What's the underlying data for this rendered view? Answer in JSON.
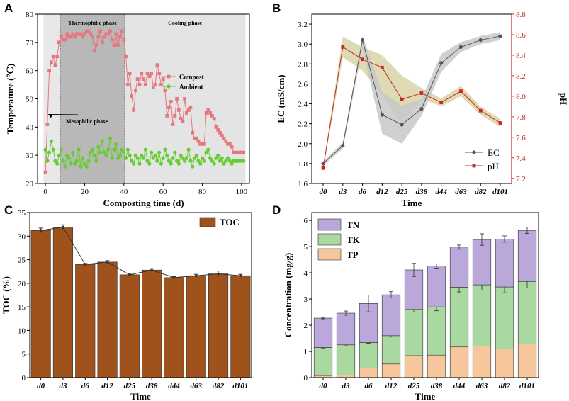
{
  "panels": {
    "a": "A",
    "b": "B",
    "c": "C",
    "d": "D"
  },
  "colors": {
    "compost": "#e8767d",
    "ambient": "#66cc33",
    "ec": "#555555",
    "ph": "#c62828",
    "toc": "#a0521d",
    "tn": "#b9a8d9",
    "tk": "#a9d8a0",
    "tp": "#f6c79c",
    "band_ec": "#c8c8c8",
    "band_ph": "#d8d3a6",
    "phase_meso": "#e8e8e8",
    "phase_thermo": "#b8b8b8",
    "phase_cool": "#e4e4e4"
  },
  "chart_data": [
    {
      "id": "A",
      "type": "line",
      "xlabel": "Composting time (d)",
      "ylabel": "Temperature (℃)",
      "xlim": [
        -4,
        104
      ],
      "ylim": [
        20,
        80
      ],
      "xticks": [
        0,
        20,
        40,
        60,
        80,
        100
      ],
      "yticks": [
        20,
        30,
        40,
        50,
        60,
        70,
        80
      ],
      "phases": [
        {
          "name": "Mesophilic phase",
          "start": -1,
          "end": 7.5
        },
        {
          "name": "Thermophilic phase",
          "start": 7.5,
          "end": 40.5
        },
        {
          "name": "Cooling phase",
          "start": 40.5,
          "end": 102
        }
      ],
      "annotation": "Mesophilic phase",
      "series": [
        {
          "name": "Compost",
          "x": [
            0,
            1,
            2,
            3,
            4,
            5,
            6,
            7,
            8,
            9,
            10,
            11,
            12,
            13,
            14,
            15,
            16,
            17,
            18,
            19,
            20,
            21,
            22,
            23,
            24,
            25,
            26,
            27,
            28,
            29,
            30,
            31,
            32,
            33,
            34,
            35,
            36,
            37,
            38,
            39,
            40,
            41,
            42,
            43,
            44,
            45,
            46,
            47,
            48,
            49,
            50,
            51,
            52,
            53,
            54,
            55,
            56,
            57,
            58,
            59,
            60,
            61,
            62,
            63,
            64,
            65,
            66,
            67,
            68,
            69,
            70,
            71,
            72,
            73,
            74,
            75,
            76,
            77,
            78,
            79,
            80,
            81,
            82,
            83,
            84,
            85,
            86,
            87,
            88,
            89,
            90,
            91,
            92,
            93,
            94,
            95,
            96,
            97,
            98,
            99,
            100,
            101
          ],
          "values": [
            24,
            41,
            60,
            63,
            65,
            62,
            65,
            70,
            72,
            71,
            71,
            73,
            72,
            72,
            73,
            72,
            73,
            73,
            73,
            72,
            73,
            74,
            74,
            73,
            72,
            67,
            69,
            72,
            74,
            70,
            72,
            73,
            73,
            74,
            71,
            69,
            73,
            69,
            72,
            74,
            71,
            65,
            55,
            59,
            51,
            46,
            53,
            57,
            55,
            59,
            57,
            55,
            59,
            58,
            59,
            54,
            55,
            62,
            59,
            55,
            57,
            53,
            44,
            47,
            49,
            41,
            44,
            50,
            46,
            43,
            42,
            50,
            45,
            46,
            47,
            38,
            36,
            36,
            35,
            34,
            34,
            34,
            45,
            46,
            45,
            44,
            43,
            40,
            39,
            38,
            37,
            36,
            35,
            34,
            34,
            33,
            31,
            31,
            31,
            31,
            31,
            31
          ]
        },
        {
          "name": "Ambient",
          "x": [
            0,
            1,
            2,
            3,
            4,
            5,
            6,
            7,
            8,
            9,
            10,
            11,
            12,
            13,
            14,
            15,
            16,
            17,
            18,
            19,
            20,
            21,
            22,
            23,
            24,
            25,
            26,
            27,
            28,
            29,
            30,
            31,
            32,
            33,
            34,
            35,
            36,
            37,
            38,
            39,
            40,
            41,
            42,
            43,
            44,
            45,
            46,
            47,
            48,
            49,
            50,
            51,
            52,
            53,
            54,
            55,
            56,
            57,
            58,
            59,
            60,
            61,
            62,
            63,
            64,
            65,
            66,
            67,
            68,
            69,
            70,
            71,
            72,
            73,
            74,
            75,
            76,
            77,
            78,
            79,
            80,
            81,
            82,
            83,
            84,
            85,
            86,
            87,
            88,
            89,
            90,
            91,
            92,
            93,
            94,
            95,
            96,
            97,
            98,
            99,
            100,
            101
          ],
          "values": [
            32,
            28,
            31,
            35,
            32,
            28,
            27,
            30,
            32,
            28,
            26,
            30,
            29,
            27,
            31,
            27,
            28,
            32,
            26,
            29,
            27,
            26,
            28,
            31,
            32,
            30,
            28,
            33,
            31,
            35,
            31,
            30,
            32,
            36,
            29,
            32,
            34,
            29,
            30,
            32,
            31,
            29,
            32,
            30,
            28,
            27,
            30,
            29,
            27,
            30,
            29,
            32,
            28,
            27,
            31,
            29,
            30,
            28,
            31,
            27,
            29,
            32,
            30,
            28,
            27,
            29,
            31,
            28,
            27,
            30,
            29,
            28,
            29,
            32,
            28,
            26,
            29,
            30,
            28,
            27,
            29,
            28,
            31,
            32,
            29,
            28,
            27,
            29,
            30,
            28,
            29,
            27,
            28,
            29,
            28,
            27,
            28,
            28,
            28,
            28,
            28,
            28
          ]
        }
      ]
    },
    {
      "id": "B",
      "type": "line",
      "xlabel": "Time",
      "ylabel": "EC (mS/cm)",
      "ylabel2": "pH",
      "categories": [
        "d0",
        "d3",
        "d6",
        "d12",
        "d25",
        "d38",
        "d44",
        "d63",
        "d82",
        "d101"
      ],
      "ylim": [
        1.6,
        3.3
      ],
      "yticks": [
        1.6,
        1.8,
        2.0,
        2.2,
        2.4,
        2.6,
        2.8,
        3.0,
        3.2
      ],
      "ylim2": [
        7.15,
        8.8
      ],
      "yticks2": [
        7.2,
        7.4,
        7.6,
        7.8,
        8.0,
        8.2,
        8.4,
        8.6,
        8.8
      ],
      "series": [
        {
          "name": "EC",
          "axis": "left",
          "values": [
            1.8,
            1.98,
            3.04,
            2.29,
            2.19,
            2.35,
            2.81,
            2.97,
            3.04,
            3.08
          ],
          "band_low": [
            1.78,
            1.95,
            2.95,
            2.1,
            2.0,
            2.28,
            2.72,
            2.92,
            3.0,
            3.04
          ],
          "band_high": [
            1.82,
            2.01,
            3.08,
            2.52,
            2.38,
            2.45,
            2.9,
            3.02,
            3.08,
            3.12
          ]
        },
        {
          "name": "pH",
          "axis": "right",
          "values": [
            7.3,
            8.48,
            8.36,
            8.28,
            7.97,
            8.03,
            7.94,
            8.05,
            7.86,
            7.74
          ],
          "band_low": [
            7.28,
            8.38,
            8.25,
            8.02,
            7.72,
            7.98,
            7.9,
            8.0,
            7.82,
            7.7
          ],
          "band_high": [
            7.32,
            8.58,
            8.48,
            8.4,
            8.2,
            8.08,
            7.98,
            8.1,
            7.9,
            7.78
          ]
        }
      ]
    },
    {
      "id": "C",
      "type": "bar",
      "xlabel": "Time",
      "ylabel": "TOC (%)",
      "categories": [
        "d0",
        "d3",
        "d6",
        "d12",
        "d25",
        "d38",
        "d44",
        "d63",
        "d82",
        "d101"
      ],
      "ylim": [
        0,
        35
      ],
      "yticks": [
        0,
        5,
        10,
        15,
        20,
        25,
        30,
        35
      ],
      "series": [
        {
          "name": "TOC",
          "values": [
            31.2,
            31.9,
            24.0,
            24.5,
            21.8,
            22.8,
            21.2,
            21.6,
            22.0,
            21.6
          ],
          "errors": [
            0.5,
            0.5,
            0.2,
            0.3,
            0.3,
            0.3,
            0.2,
            0.3,
            0.6,
            0.3
          ]
        }
      ]
    },
    {
      "id": "D",
      "type": "bar",
      "stacked": true,
      "xlabel": "Time",
      "ylabel": "Concentration (mg/g)",
      "categories": [
        "d0",
        "d3",
        "d6",
        "d12",
        "d25",
        "d38",
        "d44",
        "d63",
        "d82",
        "d101"
      ],
      "ylim": [
        0,
        6.3
      ],
      "yticks": [
        0,
        1,
        2,
        3,
        4,
        5,
        6
      ],
      "series": [
        {
          "name": "TP",
          "values": [
            0.08,
            0.09,
            0.37,
            0.52,
            0.84,
            0.86,
            1.17,
            1.2,
            1.1,
            1.29
          ],
          "errors": [
            0,
            0,
            0,
            0,
            0,
            0,
            0,
            0,
            0,
            0
          ]
        },
        {
          "name": "TK",
          "values": [
            1.07,
            1.16,
            0.97,
            1.08,
            1.76,
            1.84,
            2.28,
            2.34,
            2.36,
            2.38
          ],
          "errors": [
            0.02,
            0.04,
            0.03,
            0.05,
            0.1,
            0.15,
            0.18,
            0.2,
            0.22,
            0.25
          ]
        },
        {
          "name": "TN",
          "values": [
            1.12,
            1.21,
            1.49,
            1.56,
            1.51,
            1.56,
            1.53,
            1.73,
            1.83,
            1.95
          ],
          "errors": [
            0.03,
            0.08,
            0.32,
            0.12,
            0.25,
            0.08,
            0.08,
            0.22,
            0.12,
            0.12
          ]
        }
      ]
    }
  ]
}
